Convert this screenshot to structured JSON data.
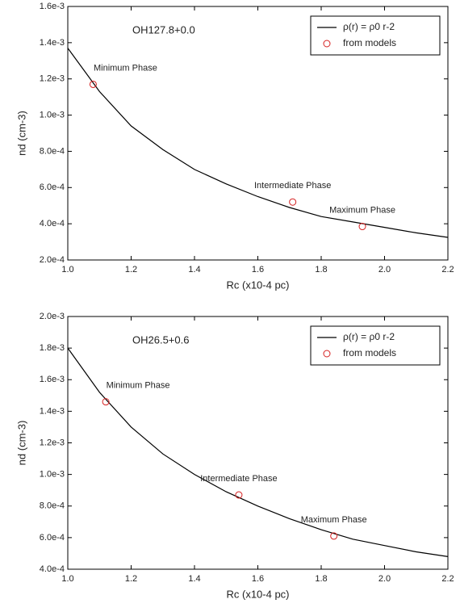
{
  "chart_data": [
    {
      "type": "line_scatter",
      "title": "OH127.8+0.0",
      "xlabel": "Rc (x10-4 pc)",
      "ylabel": "nd (cm-3)",
      "xlim": [
        1.0,
        2.2
      ],
      "xticks": [
        {
          "value": 1.0,
          "label": "1.0"
        },
        1.2,
        1.4,
        1.6,
        1.8,
        {
          "value": 2.0,
          "label": "2.0"
        },
        2.2
      ],
      "ylim": [
        0.0002,
        0.0016
      ],
      "yticks": [
        {
          "value": 0.0002,
          "label": "2.0e-4"
        },
        {
          "value": 0.0004,
          "label": "4.0e-4"
        },
        {
          "value": 0.0006,
          "label": "6.0e-4"
        },
        {
          "value": 0.0008,
          "label": "8.0e-4"
        },
        {
          "value": 0.001,
          "label": "1.0e-3"
        },
        {
          "value": 0.0012,
          "label": "1.2e-3"
        },
        {
          "value": 0.0014,
          "label": "1.4e-3"
        },
        {
          "value": 0.0016,
          "label": "1.6e-3"
        }
      ],
      "legend": "upper right",
      "series": [
        {
          "name": "ρ(r) = ρ0 r-2",
          "color": "#000000",
          "kind": "line",
          "x": [
            1.0,
            1.1,
            1.2,
            1.3,
            1.4,
            1.5,
            1.6,
            1.7,
            1.8,
            1.9,
            2.0,
            2.1,
            2.2
          ],
          "values": [
            0.00137,
            0.00113,
            0.00094,
            0.00081,
            0.0007,
            0.00062,
            0.00055,
            0.00049,
            0.00044,
            0.00041,
            0.00038,
            0.00035,
            0.000325
          ]
        },
        {
          "name": "from models",
          "color": "#d62020",
          "kind": "scatter",
          "x": [
            1.08,
            1.71,
            1.93
          ],
          "values": [
            0.00117,
            0.00052,
            0.000385
          ]
        }
      ],
      "annotations": [
        "Minimum Phase",
        "Intermediate Phase",
        "Maximum Phase"
      ]
    },
    {
      "type": "line_scatter",
      "title": "OH26.5+0.6",
      "xlabel": "Rc (x10-4 pc)",
      "ylabel": "nd (cm-3)",
      "xlim": [
        1.0,
        2.2
      ],
      "xticks": [
        {
          "value": 1.0,
          "label": "1.0"
        },
        1.2,
        1.4,
        1.6,
        1.8,
        {
          "value": 2.0,
          "label": "2.0"
        },
        2.2
      ],
      "ylim": [
        0.0004,
        0.002
      ],
      "yticks": [
        {
          "value": 0.0004,
          "label": "4.0e-4"
        },
        {
          "value": 0.0006,
          "label": "6.0e-4"
        },
        {
          "value": 0.0008,
          "label": "8.0e-4"
        },
        {
          "value": 0.001,
          "label": "1.0e-3"
        },
        {
          "value": 0.0012,
          "label": "1.2e-3"
        },
        {
          "value": 0.0014,
          "label": "1.4e-3"
        },
        {
          "value": 0.0016,
          "label": "1.6e-3"
        },
        {
          "value": 0.0018,
          "label": "1.8e-3"
        },
        {
          "value": 0.002,
          "label": "2.0e-3"
        }
      ],
      "legend": "upper right",
      "series": [
        {
          "name": "ρ(r) = ρ0 r-2",
          "color": "#000000",
          "kind": "line",
          "x": [
            1.0,
            1.1,
            1.2,
            1.3,
            1.4,
            1.5,
            1.6,
            1.7,
            1.8,
            1.9,
            2.0,
            2.1,
            2.2
          ],
          "values": [
            0.0018,
            0.00152,
            0.0013,
            0.00113,
            0.001,
            0.00089,
            0.0008,
            0.00072,
            0.00065,
            0.00059,
            0.00055,
            0.00051,
            0.00048
          ]
        },
        {
          "name": "from models",
          "color": "#d62020",
          "kind": "scatter",
          "x": [
            1.12,
            1.54,
            1.84
          ],
          "values": [
            0.00146,
            0.00087,
            0.00061
          ]
        }
      ],
      "annotations": [
        "Minimum Phase",
        "Intermediate Phase",
        "Maximum Phase"
      ]
    }
  ]
}
